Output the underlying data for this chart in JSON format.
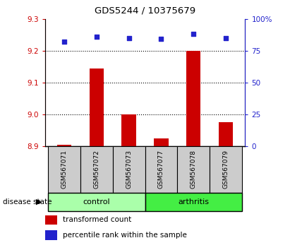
{
  "title": "GDS5244 / 10375679",
  "samples": [
    "GSM567071",
    "GSM567072",
    "GSM567073",
    "GSM567077",
    "GSM567078",
    "GSM567079"
  ],
  "bar_values": [
    8.905,
    9.145,
    9.0,
    8.925,
    9.2,
    8.975
  ],
  "bar_baseline": 8.9,
  "percentile_values": [
    82,
    86,
    85,
    84,
    88,
    85
  ],
  "ylim_left": [
    8.9,
    9.3
  ],
  "ylim_right": [
    0,
    100
  ],
  "yticks_left": [
    8.9,
    9.0,
    9.1,
    9.2,
    9.3
  ],
  "yticks_right": [
    0,
    25,
    50,
    75,
    100
  ],
  "bar_color": "#cc0000",
  "dot_color": "#2222cc",
  "control_label": "control",
  "arthritis_label": "arthritis",
  "disease_state_label": "disease state",
  "legend_bar_label": "transformed count",
  "legend_dot_label": "percentile rank within the sample",
  "control_color": "#aaffaa",
  "arthritis_color": "#44ee44",
  "xlabel_area_color": "#cccccc",
  "gridline_values": [
    9.0,
    9.1,
    9.2
  ]
}
